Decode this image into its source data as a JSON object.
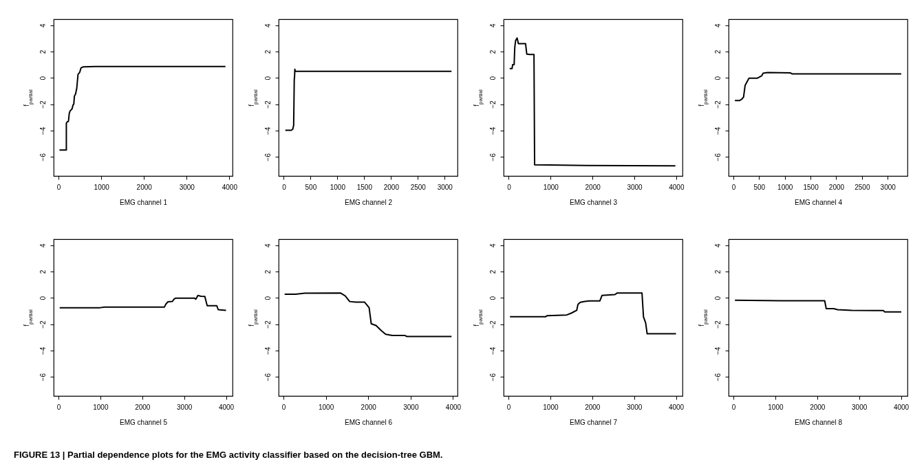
{
  "chart_data": [
    {
      "type": "line",
      "xlabel": "EMG channel  1",
      "ylabel": "f$_{partial}$",
      "annotations": [
        "FIGURE 13 | Partial dependence plots for the EMG activity classifier based on the decision-tree GBM."
      ],
      "xlim": [
        -115,
        4075
      ],
      "ylim": [
        -7.45,
        4.45
      ],
      "xticks": [
        0,
        1000,
        2000,
        3000,
        4000
      ],
      "yticks": [
        -6,
        -4,
        -2,
        0,
        2,
        4
      ],
      "series": [
        {
          "color": "#000000",
          "x": [
            21,
            182,
            182,
            200,
            231,
            250,
            273,
            315,
            340,
            357,
            370,
            400,
            427,
            455,
            497,
            524,
            580,
            860,
            3909
          ],
          "values": [
            -5.48,
            -5.48,
            -3.45,
            -3.35,
            -3.3,
            -2.7,
            -2.5,
            -2.36,
            -2.05,
            -2.0,
            -1.4,
            -1.2,
            -0.77,
            0.25,
            0.43,
            0.75,
            0.84,
            0.86,
            0.86
          ]
        }
      ]
    },
    {
      "type": "line",
      "xlabel": "EMG channel  2",
      "ylabel": "f$_{partial}$",
      "xlim": [
        -95,
        3240
      ],
      "ylim": [
        -7.45,
        4.45
      ],
      "xticks": [
        0,
        500,
        1000,
        1500,
        2000,
        2500,
        3000
      ],
      "yticks": [
        -6,
        -4,
        -2,
        0,
        2,
        4
      ],
      "series": [
        {
          "color": "#000000",
          "x": [
            30,
            140,
            168,
            185,
            196,
            202,
            207,
            215,
            3128
          ],
          "values": [
            -3.98,
            -3.98,
            -3.9,
            -3.6,
            -0.15,
            0.1,
            0.65,
            0.5,
            0.5
          ]
        }
      ]
    },
    {
      "type": "line",
      "xlabel": "EMG channel  3",
      "ylabel": "f$_{partial}$",
      "xlim": [
        -122,
        4150
      ],
      "ylim": [
        -7.45,
        4.45
      ],
      "xticks": [
        0,
        1000,
        2000,
        3000,
        4000
      ],
      "yticks": [
        -6,
        -4,
        -2,
        0,
        2,
        4
      ],
      "series": [
        {
          "color": "#000000",
          "x": [
            22,
            79,
            93,
            129,
            144,
            165,
            201,
            230,
            402,
            431,
            503,
            603,
            618,
            991,
            1853,
            3980
          ],
          "values": [
            0.7,
            0.7,
            1.0,
            1.0,
            2.3,
            2.84,
            3.02,
            2.6,
            2.6,
            1.8,
            1.77,
            1.77,
            -6.6,
            -6.62,
            -6.66,
            -6.68
          ]
        }
      ]
    },
    {
      "type": "line",
      "xlabel": "EMG channel  4",
      "ylabel": "f$_{partial}$",
      "xlim": [
        -93,
        3385
      ],
      "ylim": [
        -7.45,
        4.45
      ],
      "xticks": [
        0,
        500,
        1000,
        1500,
        2000,
        2500,
        3000
      ],
      "yticks": [
        -6,
        -4,
        -2,
        0,
        2,
        4
      ],
      "series": [
        {
          "color": "#000000",
          "x": [
            29,
            123,
            169,
            198,
            228,
            274,
            304,
            461,
            549,
            578,
            665,
            1103,
            1144,
            3263
          ],
          "values": [
            -1.72,
            -1.72,
            -1.6,
            -1.45,
            -0.57,
            -0.23,
            -0.03,
            -0.03,
            0.15,
            0.35,
            0.4,
            0.38,
            0.3,
            0.3
          ]
        }
      ]
    },
    {
      "type": "line",
      "xlabel": "EMG channel  5",
      "ylabel": "f$_{partial}$",
      "xlim": [
        -114,
        4155
      ],
      "ylim": [
        -7.45,
        4.45
      ],
      "xticks": [
        0,
        1000,
        2000,
        3000,
        4000
      ],
      "yticks": [
        -6,
        -4,
        -2,
        0,
        2,
        4
      ],
      "series": [
        {
          "color": "#000000",
          "x": [
            29,
            993,
            1100,
            2529,
            2564,
            2614,
            2721,
            2757,
            2800,
            3243,
            3279,
            3329,
            3400,
            3493,
            3550,
            3779,
            3814,
            4000
          ],
          "values": [
            -0.75,
            -0.75,
            -0.7,
            -0.7,
            -0.48,
            -0.3,
            -0.27,
            -0.1,
            -0.02,
            -0.02,
            -0.1,
            0.18,
            0.12,
            0.1,
            -0.6,
            -0.6,
            -0.9,
            -0.95
          ]
        }
      ]
    },
    {
      "type": "line",
      "xlabel": "EMG channel  6",
      "ylabel": "f$_{partial}$",
      "xlim": [
        -113,
        4106
      ],
      "ylim": [
        -7.45,
        4.45
      ],
      "xticks": [
        0,
        1000,
        2000,
        3000,
        4000
      ],
      "yticks": [
        -6,
        -4,
        -2,
        0,
        2,
        4
      ],
      "series": [
        {
          "color": "#000000",
          "x": [
            28,
            290,
            502,
            1350,
            1456,
            1562,
            1703,
            1915,
            2021,
            2071,
            2184,
            2304,
            2410,
            2565,
            2869,
            2905,
            3965
          ],
          "values": [
            0.28,
            0.28,
            0.35,
            0.36,
            0.15,
            -0.28,
            -0.33,
            -0.33,
            -0.75,
            -1.97,
            -2.1,
            -2.48,
            -2.77,
            -2.86,
            -2.86,
            -2.93,
            -2.93
          ]
        }
      ]
    },
    {
      "type": "line",
      "xlabel": "EMG channel  7",
      "ylabel": "f$_{partial}$",
      "xlim": [
        -115,
        4155
      ],
      "ylim": [
        -7.45,
        4.45
      ],
      "xticks": [
        0,
        1000,
        2000,
        3000,
        4000
      ],
      "yticks": [
        -6,
        -4,
        -2,
        0,
        2,
        4
      ],
      "series": [
        {
          "color": "#000000",
          "x": [
            36,
            890,
            926,
            1393,
            1501,
            1630,
            1659,
            1716,
            1824,
            1932,
            2183,
            2233,
            2542,
            2592,
            3188,
            3224,
            3275,
            3311,
            4000
          ],
          "values": [
            -1.43,
            -1.43,
            -1.35,
            -1.3,
            -1.16,
            -0.95,
            -0.5,
            -0.34,
            -0.27,
            -0.23,
            -0.23,
            0.18,
            0.25,
            0.36,
            0.36,
            -1.45,
            -1.9,
            -2.73,
            -2.73
          ]
        }
      ]
    },
    {
      "type": "line",
      "xlabel": "EMG channel  8",
      "ylabel": "f$_{partial}$",
      "xlim": [
        -115,
        4155
      ],
      "ylim": [
        -7.45,
        4.45
      ],
      "xticks": [
        0,
        1000,
        2000,
        3000,
        4000
      ],
      "yticks": [
        -6,
        -4,
        -2,
        0,
        2,
        4
      ],
      "series": [
        {
          "color": "#000000",
          "x": [
            36,
            1140,
            2179,
            2215,
            2394,
            2487,
            2824,
            3577,
            3613,
            4007
          ],
          "values": [
            -0.18,
            -0.22,
            -0.22,
            -0.82,
            -0.82,
            -0.9,
            -0.95,
            -0.97,
            -1.07,
            -1.07
          ]
        }
      ]
    }
  ]
}
